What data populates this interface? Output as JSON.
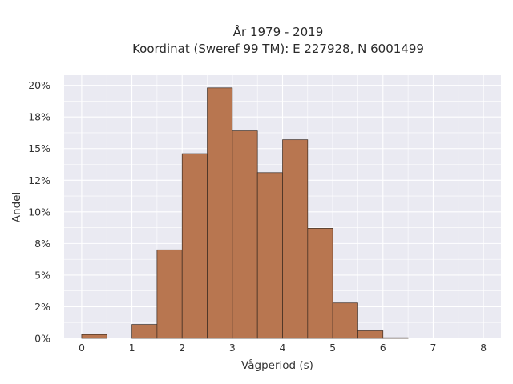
{
  "chart_data": {
    "type": "bar",
    "title": "År 1979 - 2019",
    "subtitle": "Koordinat (Sweref 99 TM): E 227928, N 6001499",
    "xlabel": "Vågperiod (s)",
    "ylabel": "Andel",
    "xlim": [
      -0.35,
      8.35
    ],
    "ylim": [
      0,
      20.8
    ],
    "x_ticks": [
      {
        "value": 0,
        "label": "0"
      },
      {
        "value": 1,
        "label": "1"
      },
      {
        "value": 2,
        "label": "2"
      },
      {
        "value": 3,
        "label": "3"
      },
      {
        "value": 4,
        "label": "4"
      },
      {
        "value": 5,
        "label": "5"
      },
      {
        "value": 6,
        "label": "6"
      },
      {
        "value": 7,
        "label": "7"
      },
      {
        "value": 8,
        "label": "8"
      }
    ],
    "y_ticks": [
      {
        "value": 0,
        "label": "0%"
      },
      {
        "value": 2.5,
        "label": "2%"
      },
      {
        "value": 5,
        "label": "5%"
      },
      {
        "value": 7.5,
        "label": "8%"
      },
      {
        "value": 10,
        "label": "10%"
      },
      {
        "value": 12.5,
        "label": "12%"
      },
      {
        "value": 15,
        "label": "15%"
      },
      {
        "value": 17.5,
        "label": "18%"
      },
      {
        "value": 20,
        "label": "20%"
      }
    ],
    "bin_width": 0.5,
    "bins": [
      {
        "x0": 0.0,
        "value": 0.3
      },
      {
        "x0": 0.5,
        "value": 0.0
      },
      {
        "x0": 1.0,
        "value": 1.1
      },
      {
        "x0": 1.5,
        "value": 7.0
      },
      {
        "x0": 2.0,
        "value": 14.6
      },
      {
        "x0": 2.5,
        "value": 19.8
      },
      {
        "x0": 3.0,
        "value": 16.4
      },
      {
        "x0": 3.5,
        "value": 13.1
      },
      {
        "x0": 4.0,
        "value": 15.7
      },
      {
        "x0": 4.5,
        "value": 8.7
      },
      {
        "x0": 5.0,
        "value": 2.8
      },
      {
        "x0": 5.5,
        "value": 0.6
      },
      {
        "x0": 6.0,
        "value": 0.05
      }
    ],
    "bar_color": "#b87650",
    "background_color": "#eaeaf2",
    "grid": true
  }
}
